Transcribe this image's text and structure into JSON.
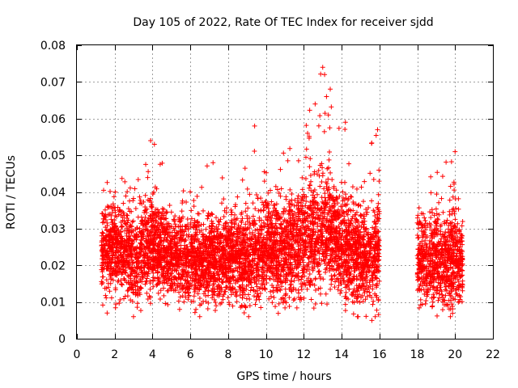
{
  "chart_data": {
    "type": "scatter",
    "title": "Day 105 of 2022, Rate Of TEC Index for receiver sjdd",
    "xlabel": "GPS time / hours",
    "ylabel": "ROTI / TECUs",
    "xlim": [
      0,
      22
    ],
    "ylim": [
      0,
      0.08
    ],
    "x_ticks": [
      0,
      2,
      4,
      6,
      8,
      10,
      12,
      14,
      16,
      18,
      20,
      22
    ],
    "x_tick_labels": [
      "0",
      "2",
      "4",
      "6",
      "8",
      "10",
      "12",
      "14",
      "16",
      "18",
      "20",
      "22"
    ],
    "y_ticks": [
      0,
      0.01,
      0.02,
      0.03,
      0.04,
      0.05,
      0.06,
      0.07,
      0.08
    ],
    "y_tick_labels": [
      "0",
      "0.01",
      "0.02",
      "0.03",
      "0.04",
      "0.05",
      "0.06",
      "0.07",
      "0.08"
    ],
    "grid": true,
    "marker": "+",
    "color": "#ff0000",
    "series": [
      {
        "name": "ROTI",
        "segments": [
          {
            "x_start": 1.3,
            "x_end": 16.0
          },
          {
            "x_start": 18.0,
            "x_end": 20.4
          }
        ],
        "profile": [
          {
            "x": 1.5,
            "center": 0.024,
            "spread": 0.01,
            "peak": 0.043
          },
          {
            "x": 2.0,
            "center": 0.025,
            "spread": 0.011,
            "peak": 0.046
          },
          {
            "x": 3.0,
            "center": 0.021,
            "spread": 0.01,
            "peak": 0.04
          },
          {
            "x": 4.0,
            "center": 0.026,
            "spread": 0.012,
            "peak": 0.054
          },
          {
            "x": 5.0,
            "center": 0.022,
            "spread": 0.01,
            "peak": 0.042
          },
          {
            "x": 6.0,
            "center": 0.021,
            "spread": 0.01,
            "peak": 0.04
          },
          {
            "x": 7.0,
            "center": 0.021,
            "spread": 0.01,
            "peak": 0.048
          },
          {
            "x": 8.0,
            "center": 0.022,
            "spread": 0.01,
            "peak": 0.042
          },
          {
            "x": 9.0,
            "center": 0.022,
            "spread": 0.011,
            "peak": 0.047
          },
          {
            "x": 10.0,
            "center": 0.024,
            "spread": 0.012,
            "peak": 0.058
          },
          {
            "x": 11.0,
            "center": 0.024,
            "spread": 0.012,
            "peak": 0.05
          },
          {
            "x": 12.0,
            "center": 0.026,
            "spread": 0.013,
            "peak": 0.057
          },
          {
            "x": 13.0,
            "center": 0.03,
            "spread": 0.015,
            "peak": 0.074
          },
          {
            "x": 14.0,
            "center": 0.025,
            "spread": 0.012,
            "peak": 0.059
          },
          {
            "x": 15.0,
            "center": 0.022,
            "spread": 0.011,
            "peak": 0.048
          },
          {
            "x": 16.0,
            "center": 0.022,
            "spread": 0.011,
            "peak": 0.057
          },
          {
            "x": 18.0,
            "center": 0.021,
            "spread": 0.01,
            "peak": 0.042
          },
          {
            "x": 19.0,
            "center": 0.021,
            "spread": 0.01,
            "peak": 0.045
          },
          {
            "x": 20.0,
            "center": 0.021,
            "spread": 0.011,
            "peak": 0.051
          },
          {
            "x": 20.4,
            "center": 0.02,
            "spread": 0.009,
            "peak": 0.034
          }
        ],
        "highlights": [
          {
            "x": 3.9,
            "y": 0.054
          },
          {
            "x": 4.1,
            "y": 0.053
          },
          {
            "x": 7.2,
            "y": 0.048
          },
          {
            "x": 9.4,
            "y": 0.058
          },
          {
            "x": 12.2,
            "y": 0.056
          },
          {
            "x": 12.6,
            "y": 0.064
          },
          {
            "x": 13.0,
            "y": 0.074
          },
          {
            "x": 13.1,
            "y": 0.072
          },
          {
            "x": 13.2,
            "y": 0.066
          },
          {
            "x": 13.3,
            "y": 0.061
          },
          {
            "x": 14.2,
            "y": 0.059
          },
          {
            "x": 15.9,
            "y": 0.057
          },
          {
            "x": 20.0,
            "y": 0.051
          },
          {
            "x": 15.6,
            "y": 0.005
          },
          {
            "x": 1.6,
            "y": 0.007
          }
        ]
      }
    ]
  }
}
